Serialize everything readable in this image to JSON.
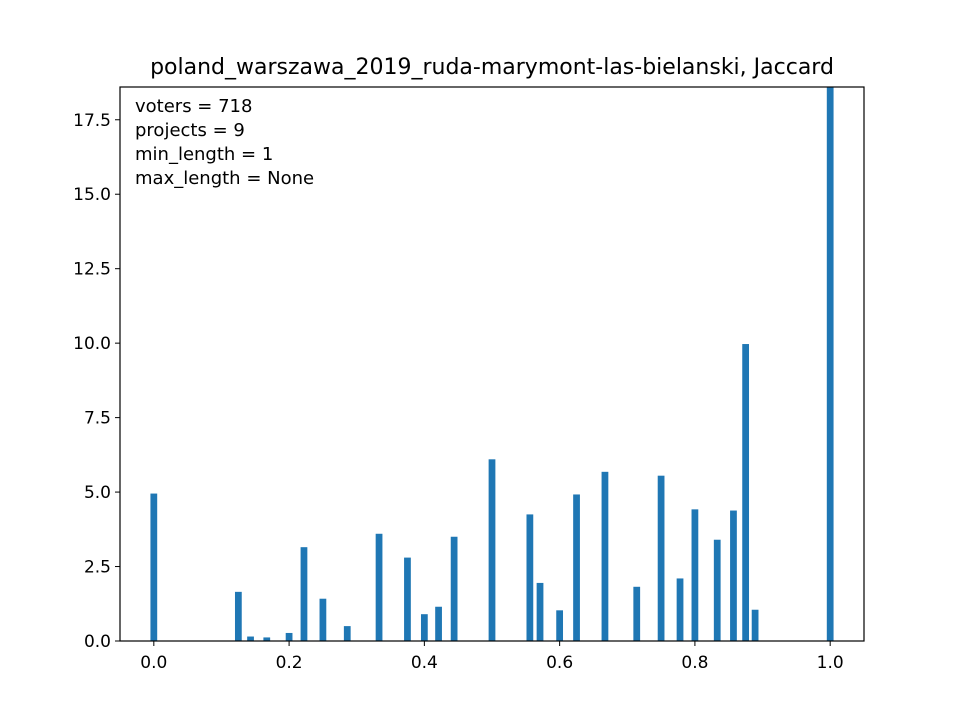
{
  "chart_data": {
    "type": "bar",
    "title": "poland_warszawa_2019_ruda-marymont-las-bielanski, Jaccard",
    "xlabel": "",
    "ylabel": "",
    "xlim": [
      -0.05,
      1.05
    ],
    "ylim": [
      0,
      18.6
    ],
    "x_ticks": [
      0.0,
      0.2,
      0.4,
      0.6,
      0.8,
      1.0
    ],
    "x_tick_labels": [
      "0.0",
      "0.2",
      "0.4",
      "0.6",
      "0.8",
      "1.0"
    ],
    "y_ticks": [
      0.0,
      2.5,
      5.0,
      7.5,
      10.0,
      12.5,
      15.0,
      17.5
    ],
    "y_tick_labels": [
      "0.0",
      "2.5",
      "5.0",
      "7.5",
      "10.0",
      "12.5",
      "15.0",
      "17.5"
    ],
    "bar_width": 0.01,
    "bar_color": "#1f77b4",
    "grid": false,
    "bars": [
      {
        "x": 0.0,
        "value": 4.95
      },
      {
        "x": 0.125,
        "value": 1.65
      },
      {
        "x": 0.143,
        "value": 0.15
      },
      {
        "x": 0.167,
        "value": 0.12
      },
      {
        "x": 0.2,
        "value": 0.27
      },
      {
        "x": 0.222,
        "value": 3.15
      },
      {
        "x": 0.25,
        "value": 1.42
      },
      {
        "x": 0.286,
        "value": 0.5
      },
      {
        "x": 0.333,
        "value": 3.6
      },
      {
        "x": 0.375,
        "value": 2.8
      },
      {
        "x": 0.4,
        "value": 0.9
      },
      {
        "x": 0.421,
        "value": 1.15
      },
      {
        "x": 0.444,
        "value": 3.5
      },
      {
        "x": 0.5,
        "value": 6.1
      },
      {
        "x": 0.556,
        "value": 4.25
      },
      {
        "x": 0.571,
        "value": 1.95
      },
      {
        "x": 0.6,
        "value": 1.03
      },
      {
        "x": 0.625,
        "value": 4.92
      },
      {
        "x": 0.667,
        "value": 5.68
      },
      {
        "x": 0.714,
        "value": 1.82
      },
      {
        "x": 0.75,
        "value": 5.55
      },
      {
        "x": 0.778,
        "value": 2.1
      },
      {
        "x": 0.8,
        "value": 4.42
      },
      {
        "x": 0.833,
        "value": 3.4
      },
      {
        "x": 0.857,
        "value": 4.38
      },
      {
        "x": 0.875,
        "value": 9.97
      },
      {
        "x": 0.889,
        "value": 1.05
      },
      {
        "x": 1.0,
        "value": 18.6
      }
    ],
    "annotations": [
      "voters = 718",
      "projects = 9",
      "min_length = 1",
      "max_length = None"
    ],
    "annotation_placement": "top-left"
  }
}
